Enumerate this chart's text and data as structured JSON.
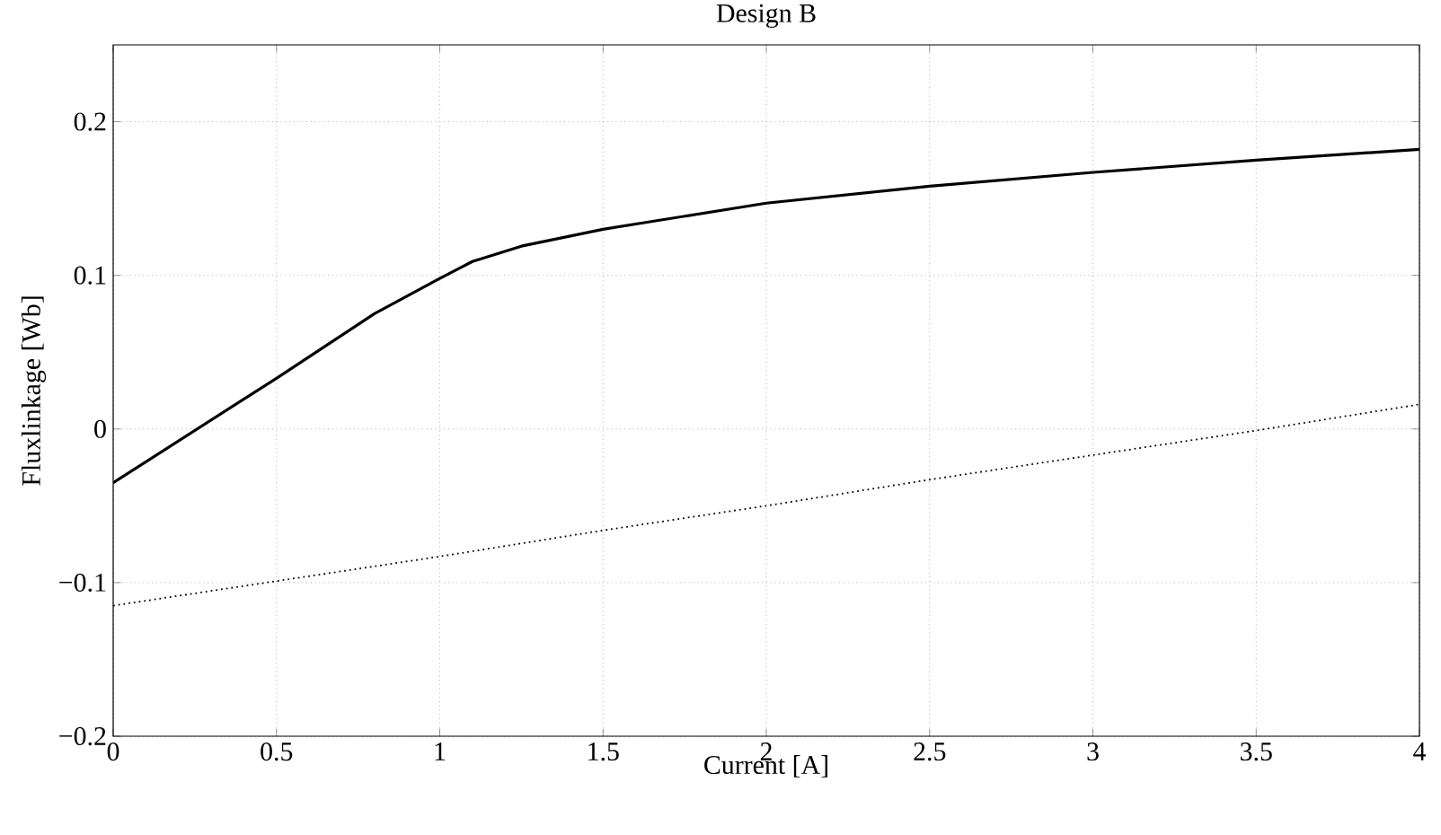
{
  "chart_data": {
    "type": "line",
    "title": "Design B",
    "xlabel": "Current [A]",
    "ylabel": "Fluxlinkage [Wb]",
    "xlim": [
      0,
      4
    ],
    "xticks": [
      0,
      0.5,
      1,
      1.5,
      2,
      2.5,
      3,
      3.5,
      4
    ],
    "ylim": [
      -0.2,
      0.25
    ],
    "yticks": [
      {
        "value": -0.2,
        "label": "−0.2"
      },
      {
        "value": -0.1,
        "label": "−0.1"
      },
      0,
      0.1,
      0.2
    ],
    "grid": true,
    "series": [
      {
        "color": "#000000",
        "line_style": "solid",
        "x": [
          0,
          0.5,
          0.8,
          1.0,
          1.1,
          1.25,
          1.5,
          2,
          2.5,
          3,
          3.5,
          4
        ],
        "values": [
          -0.035,
          0.033,
          0.075,
          0.098,
          0.109,
          0.119,
          0.13,
          0.147,
          0.158,
          0.167,
          0.175,
          0.182
        ]
      },
      {
        "color": "#000000",
        "line_style": "dotted",
        "x": [
          0,
          0.5,
          1,
          1.5,
          2,
          2.5,
          3,
          3.5,
          4
        ],
        "values": [
          -0.115,
          -0.099,
          -0.083,
          -0.066,
          -0.05,
          -0.033,
          -0.017,
          -0.001,
          0.016
        ]
      }
    ]
  }
}
